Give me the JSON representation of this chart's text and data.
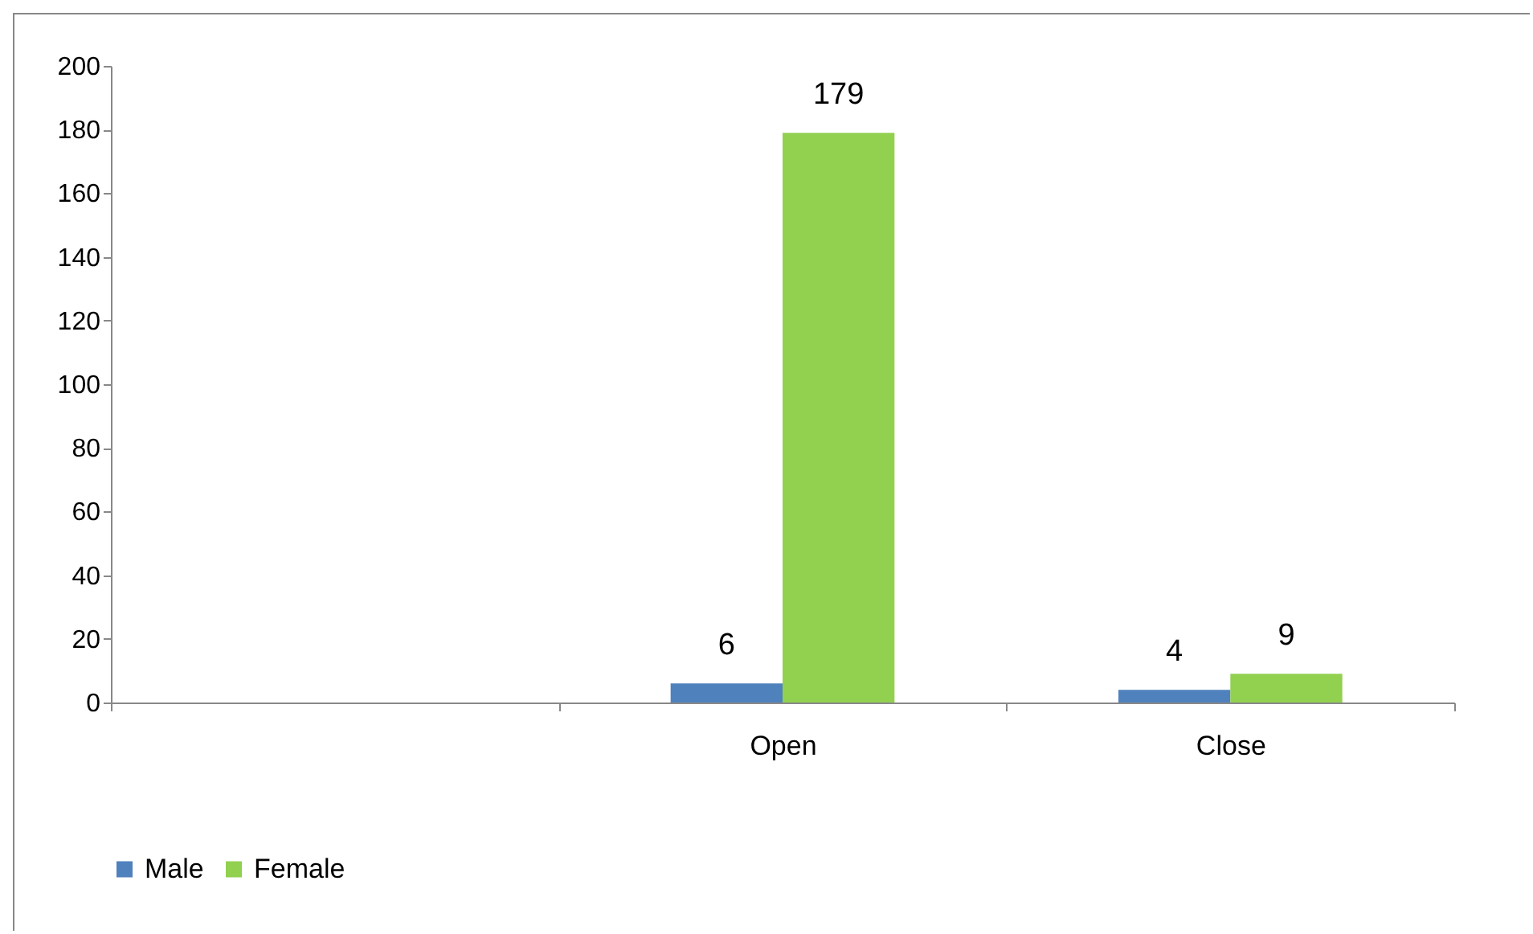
{
  "chart_data": {
    "type": "bar",
    "categories": [
      null,
      "Open",
      "Close"
    ],
    "series": [
      {
        "name": "Male",
        "color": "#4f81bd",
        "values": [
          null,
          6,
          4
        ]
      },
      {
        "name": "Female",
        "color": "#92d050",
        "values": [
          null,
          179,
          9
        ]
      }
    ],
    "ylim": [
      0,
      200
    ],
    "yticks": [
      0,
      20,
      40,
      60,
      80,
      100,
      120,
      140,
      160,
      180,
      200
    ],
    "grid": false,
    "legend": "bottom",
    "data_labels": true
  }
}
